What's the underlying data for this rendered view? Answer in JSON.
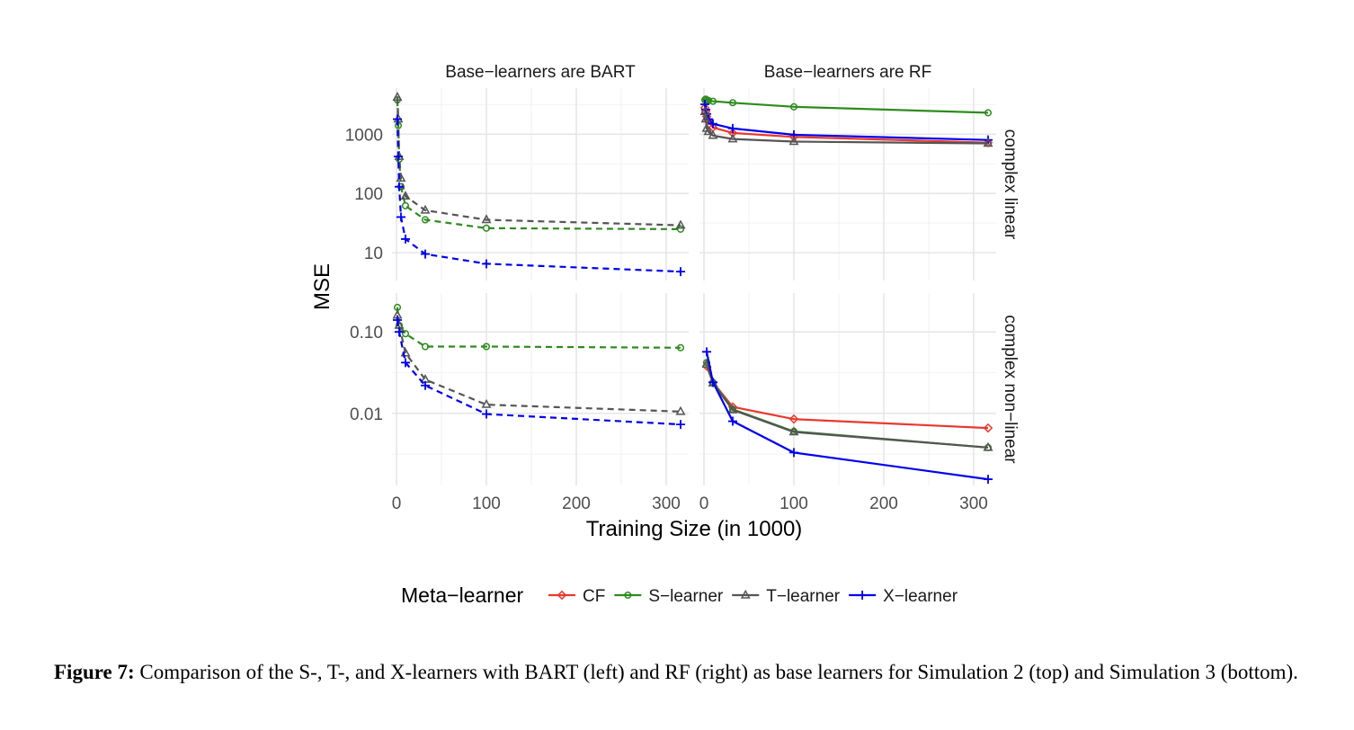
{
  "caption": {
    "label": "Figure 7:",
    "text": "Comparison of the S-, T-, and X-learners with BART (left) and RF (right) as base learners for Simulation 2 (top) and Simulation 3 (bottom)."
  },
  "chart_data": {
    "type": "line",
    "ylabel": "MSE",
    "xlabel": "Training Size (in 1000)",
    "y_scale": "log",
    "grid": true,
    "legend": {
      "title": "Meta−learner",
      "position": "bottom",
      "entries": [
        {
          "name": "CF",
          "color": "#e8392e",
          "marker": "diamond"
        },
        {
          "name": "S−learner",
          "color": "#2e8b1e",
          "marker": "circle"
        },
        {
          "name": "T−learner",
          "color": "#555555",
          "marker": "triangle"
        },
        {
          "name": "X−learner",
          "color": "#0000ee",
          "marker": "plus"
        }
      ]
    },
    "x_ticks": [
      0,
      100,
      200,
      300
    ],
    "x_range": [
      -5,
      325
    ],
    "col_labels": [
      "Base−learners are BART",
      "Base−learners are RF"
    ],
    "row_labels": [
      "complex linear",
      "complex non−linear"
    ],
    "rows": [
      {
        "y_ticks": [
          10,
          100,
          1000
        ],
        "y_tick_labels": [
          "10",
          "100",
          "1000"
        ],
        "y_range": [
          3.4,
          6000
        ]
      },
      {
        "y_ticks": [
          0.01,
          0.1
        ],
        "y_tick_labels": [
          "0.01",
          "0.10"
        ],
        "y_range": [
          0.0013,
          0.3
        ]
      }
    ],
    "panels": [
      {
        "row": 0,
        "col": 0,
        "linetype": "dashed",
        "series": [
          {
            "name": "S−learner",
            "x": [
              1,
              2,
              3,
              5,
              10,
              32,
              100,
              316
            ],
            "y": [
              3800,
              1400,
              380,
              130,
              62,
              36,
              26,
              25
            ]
          },
          {
            "name": "T−learner",
            "x": [
              1,
              2,
              3,
              5,
              10,
              32,
              100,
              316
            ],
            "y": [
              4200,
              1800,
              420,
              180,
              90,
              52,
              36,
              29
            ]
          },
          {
            "name": "X−learner",
            "x": [
              1,
              2,
              3,
              5,
              10,
              32,
              100,
              316
            ],
            "y": [
              1800,
              420,
              130,
              40,
              17,
              9.5,
              6.5,
              4.8
            ]
          }
        ]
      },
      {
        "row": 0,
        "col": 1,
        "linetype": "solid",
        "series": [
          {
            "name": "S−learner",
            "x": [
              1,
              2,
              3,
              5,
              10,
              32,
              100,
              316
            ],
            "y": [
              3800,
              3900,
              3800,
              3700,
              3600,
              3400,
              2900,
              2300
            ]
          },
          {
            "name": "CF",
            "x": [
              1,
              2,
              3,
              5,
              10,
              32,
              100,
              316
            ],
            "y": [
              2800,
              2400,
              2000,
              1700,
              1300,
              1050,
              900,
              720
            ]
          },
          {
            "name": "X−learner",
            "x": [
              1,
              2,
              3,
              5,
              10,
              32,
              100,
              316
            ],
            "y": [
              3200,
              2600,
              2200,
              1800,
              1500,
              1250,
              980,
              800
            ]
          },
          {
            "name": "T−learner",
            "x": [
              1,
              2,
              3,
              5,
              10,
              32,
              100,
              316
            ],
            "y": [
              2400,
              1800,
              1250,
              1100,
              950,
              830,
              750,
              700
            ]
          }
        ]
      },
      {
        "row": 1,
        "col": 0,
        "linetype": "dashed",
        "series": [
          {
            "name": "S−learner",
            "x": [
              1,
              3,
              10,
              32,
              100,
              316
            ],
            "y": [
              0.2,
              0.12,
              0.095,
              0.066,
              0.066,
              0.064
            ]
          },
          {
            "name": "T−learner",
            "x": [
              1,
              3,
              10,
              32,
              100,
              316
            ],
            "y": [
              0.16,
              0.12,
              0.055,
              0.026,
              0.0128,
              0.0105
            ]
          },
          {
            "name": "X−learner",
            "x": [
              1,
              3,
              10,
              32,
              100,
              316
            ],
            "y": [
              0.14,
              0.1,
              0.042,
              0.022,
              0.0098,
              0.0073
            ]
          }
        ]
      },
      {
        "row": 1,
        "col": 1,
        "linetype": "solid",
        "series": [
          {
            "name": "CF",
            "x": [
              3,
              10,
              32,
              100,
              316
            ],
            "y": [
              0.038,
              0.024,
              0.012,
              0.0085,
              0.0066
            ]
          },
          {
            "name": "S−learner",
            "x": [
              3,
              10,
              32,
              100,
              316
            ],
            "y": [
              0.042,
              0.024,
              0.0112,
              0.006,
              0.0038
            ]
          },
          {
            "name": "T−learner",
            "x": [
              3,
              10,
              32,
              100,
              316
            ],
            "y": [
              0.04,
              0.0235,
              0.011,
              0.0059,
              0.0038
            ]
          },
          {
            "name": "X−learner",
            "x": [
              3,
              10,
              32,
              100,
              316
            ],
            "y": [
              0.057,
              0.024,
              0.008,
              0.0033,
              0.00155
            ]
          }
        ]
      }
    ]
  }
}
